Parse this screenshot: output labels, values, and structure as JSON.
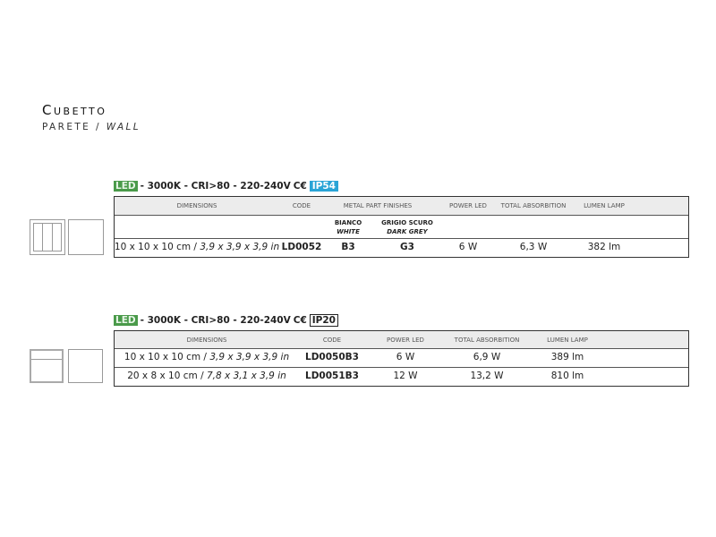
{
  "header": {
    "title": "Cubetto",
    "subtitle_it": "PARETE",
    "subtitle_sep": "/",
    "subtitle_en": "WALL"
  },
  "sections": [
    {
      "spec": {
        "led": "LED",
        "text": "- 3000K - CRI>80 - 220-240V",
        "ce": "C€",
        "ip": "IP54",
        "ip_color": "#2aa4d6"
      },
      "columns": [
        "DIMENSIONS",
        "CODE",
        "METAL PART FINISHES",
        "POWER LED",
        "TOTAL ABSORBITION",
        "LUMEN LAMP"
      ],
      "finishes": [
        {
          "it": "BIANCO",
          "en": "WHITE"
        },
        {
          "it": "GRIGIO SCURO",
          "en": "DARK GREY"
        }
      ],
      "rows": [
        {
          "dim_cm": "10 x 10 x 10 cm /",
          "dim_in": "3,9 x 3,9 x 3,9 in",
          "code": "LD0052",
          "finish1": "B3",
          "finish2": "G3",
          "power": "6 W",
          "absorption": "6,3 W",
          "lumen": "382 lm"
        }
      ]
    },
    {
      "spec": {
        "led": "LED",
        "text": "- 3000K - CRI>80 - 220-240V",
        "ce": "C€",
        "ip": "IP20"
      },
      "columns": [
        "DIMENSIONS",
        "CODE",
        "POWER LED",
        "TOTAL ABSORBITION",
        "LUMEN LAMP"
      ],
      "rows": [
        {
          "dim_cm": "10 x 10 x 10 cm /",
          "dim_in": "3,9 x 3,9 x 3,9 in",
          "code": "LD0050B3",
          "power": "6 W",
          "absorption": "6,9 W",
          "lumen": "389 lm"
        },
        {
          "dim_cm": "20 x 8 x 10 cm /",
          "dim_in": "7,8 x 3,1 x 3,9 in",
          "code": "LD0051B3",
          "power": "12 W",
          "absorption": "13,2 W",
          "lumen": "810 lm"
        }
      ]
    }
  ],
  "colors": {
    "led_green": "#4a9a4a",
    "header_gray": "#ececec"
  }
}
